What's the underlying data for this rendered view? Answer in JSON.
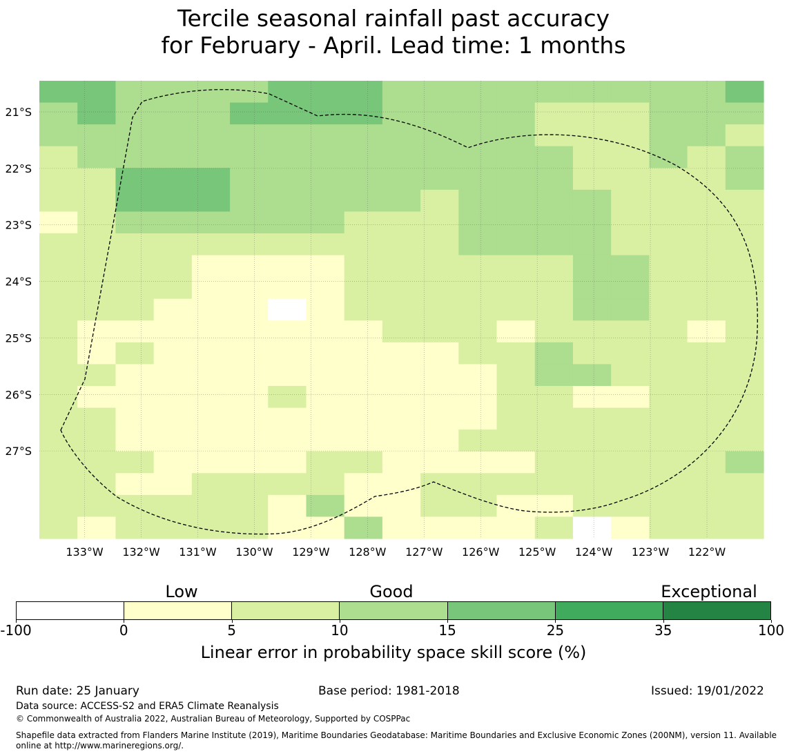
{
  "title": {
    "line1": "Tercile seasonal rainfall past accuracy",
    "line2": "for February - April. Lead time: 1 months"
  },
  "map": {
    "lon_range_degW": [
      133.8,
      121.0
    ],
    "lat_range_degS": [
      20.45,
      28.55
    ],
    "lon_ticks": [
      "133°W",
      "132°W",
      "131°W",
      "130°W",
      "129°W",
      "128°W",
      "127°W",
      "126°W",
      "125°W",
      "124°W",
      "123°W",
      "122°W"
    ],
    "lat_ticks": [
      "21°S",
      "22°S",
      "23°S",
      "24°S",
      "25°S",
      "26°S",
      "27°S"
    ],
    "grid_note": "Each cell value is a colour class index: 0 = -100 to 0, 1 = 0 to 5, 2 = 5 to 10, 3 = 10 to 15, 4 = 15 to 25",
    "grid": [
      "4433334443333333334",
      "3433344443333222333",
      "3333333333333222332",
      "2333333333333322323",
      "2244433333333322223",
      "2244433333233332222",
      "1233333322233332222",
      "2222222222233332222",
      "2222111122222233222",
      "2222111122222233222",
      "2221110122222233222",
      "2111111112221222212",
      "2121111111122322222",
      "2211111111112332222",
      "2111112111112211222",
      "2211111111112222222",
      "2211111111122222222",
      "2221111221111222223",
      "2211222211222222222",
      "2222221311221122222",
      "2122221131111201222"
    ]
  },
  "colorbar": {
    "bins": [
      {
        "range": "-100 to 0",
        "color": "#ffffff"
      },
      {
        "range": "0 to 5",
        "color": "#ffffcc"
      },
      {
        "range": "5 to 10",
        "color": "#d9f0a3"
      },
      {
        "range": "10 to 15",
        "color": "#addd8e"
      },
      {
        "range": "15 to 25",
        "color": "#78c679"
      },
      {
        "range": "25 to 35",
        "color": "#41ab5d"
      },
      {
        "range": "35 to 100",
        "color": "#238443"
      }
    ],
    "ticks": [
      "-100",
      "0",
      "5",
      "10",
      "15",
      "25",
      "35",
      "100"
    ],
    "categories": [
      "Low",
      "Good",
      "Exceptional"
    ],
    "label": "Linear error in probability space skill score (%)"
  },
  "footer": {
    "run_date": "Run date: 25 January",
    "base_period": "Base period: 1981-2018",
    "issued": "Issued: 19/01/2022",
    "data_source": "Data source: ACCESS-S2 and ERA5 Climate Reanalysis",
    "copyright": "© Commonwealth of Australia 2022, Australian Bureau of Meteorology, Supported by COSPPac",
    "shapefile": "Shapefile data extracted from Flanders Marine Institute (2019), Maritime Boundaries Geodatabase: Maritime Boundaries and Exclusive Economic Zones (200NM), version 11. Available online at http://www.marineregions.org/."
  }
}
